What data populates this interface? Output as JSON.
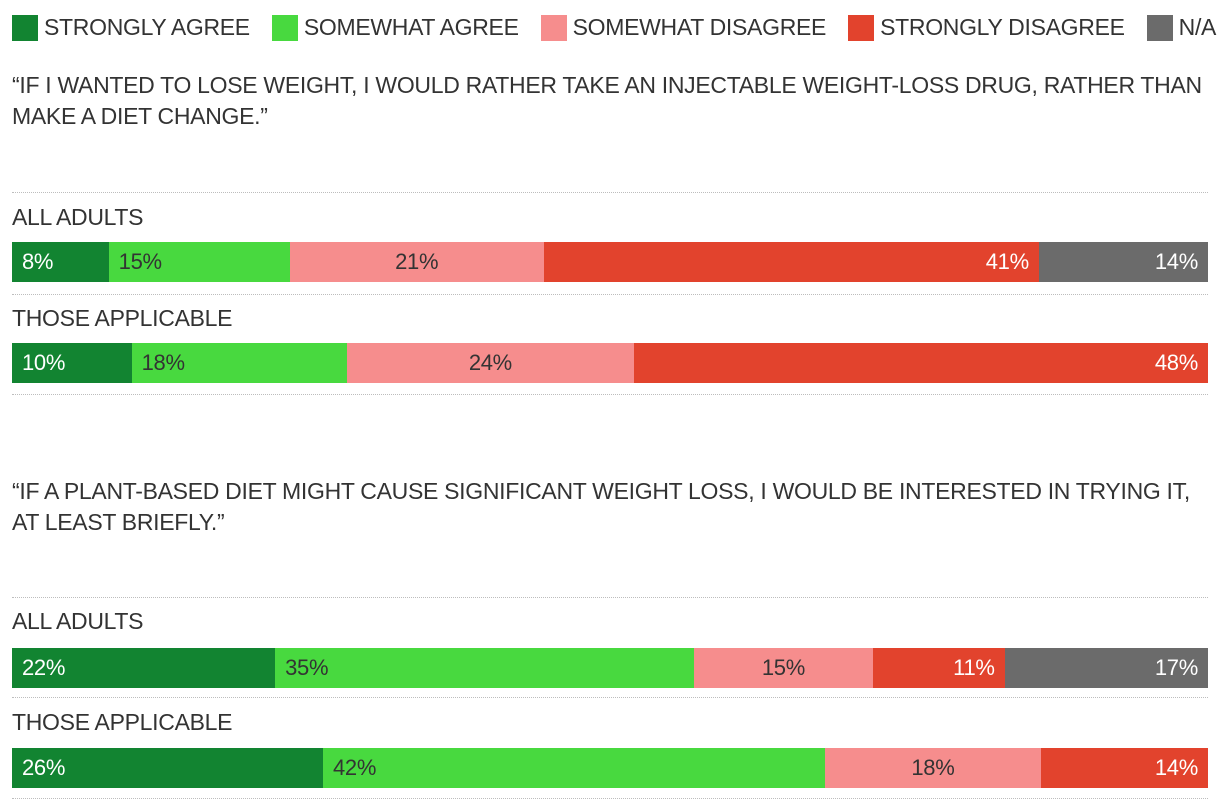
{
  "legend": [
    {
      "label": "STRONGLY AGREE",
      "color": "#128431"
    },
    {
      "label": "SOMEWHAT AGREE",
      "color": "#48d93f"
    },
    {
      "label": "SOMEWHAT DISAGREE",
      "color": "#f68d8d"
    },
    {
      "label": "STRONGLY DISAGREE",
      "color": "#e2432d"
    },
    {
      "label": "N/A",
      "color": "#6b6b6b"
    }
  ],
  "chart_data": {
    "type": "bar",
    "orientation": "horizontal",
    "stacked": true,
    "series": [
      "STRONGLY AGREE",
      "SOMEWHAT AGREE",
      "SOMEWHAT DISAGREE",
      "STRONGLY DISAGREE",
      "N/A"
    ],
    "questions": [
      {
        "text": "“IF I WANTED TO LOSE WEIGHT, I WOULD RATHER TAKE AN INJECTABLE WEIGHT-LOSS DRUG, RATHER THAN MAKE A DIET CHANGE.”",
        "groups": [
          {
            "label": "ALL ADULTS",
            "values": [
              8,
              15,
              21,
              41,
              14
            ],
            "value_labels": [
              "8%",
              "15%",
              "21%",
              "41%",
              "14%"
            ]
          },
          {
            "label": "THOSE APPLICABLE",
            "values": [
              10,
              18,
              24,
              48,
              0
            ],
            "value_labels": [
              "10%",
              "18%",
              "24%",
              "48%",
              ""
            ]
          }
        ]
      },
      {
        "text": "“IF A PLANT-BASED DIET MIGHT CAUSE SIGNIFICANT WEIGHT LOSS, I WOULD BE INTERESTED IN TRYING IT, AT LEAST BRIEFLY.”",
        "groups": [
          {
            "label": "ALL ADULTS",
            "values": [
              22,
              35,
              15,
              11,
              17
            ],
            "value_labels": [
              "22%",
              "35%",
              "15%",
              "11%",
              "17%"
            ]
          },
          {
            "label": "THOSE APPLICABLE",
            "values": [
              26,
              42,
              18,
              14,
              0
            ],
            "value_labels": [
              "26%",
              "42%",
              "18%",
              "14%",
              ""
            ]
          }
        ]
      }
    ],
    "xlim": [
      0,
      100
    ]
  }
}
